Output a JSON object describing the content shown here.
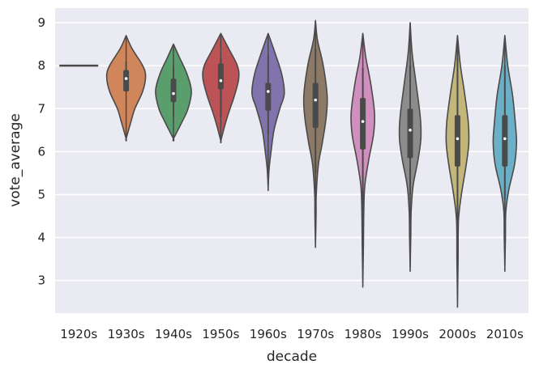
{
  "chart_data": {
    "type": "violin",
    "xlabel": "decade",
    "ylabel": "vote_average",
    "ylim": [
      2.24,
      9.34
    ],
    "yticks": [
      3,
      4,
      5,
      6,
      7,
      8,
      9
    ],
    "grid": "horizontal",
    "background": "#eaeaf2",
    "categories": [
      "1920s",
      "1930s",
      "1940s",
      "1950s",
      "1960s",
      "1970s",
      "1980s",
      "1990s",
      "2000s",
      "2010s"
    ],
    "violins": [
      {
        "category": "1920s",
        "color": "#4a4a4a",
        "single_value": 8.0
      },
      {
        "category": "1930s",
        "color": "#d0855a",
        "min": 6.3,
        "max": 8.7,
        "median": 7.7,
        "q1": 7.4,
        "q3": 7.9,
        "whisker_low": 7.4,
        "whisker_high": 8.1,
        "density": [
          [
            8.7,
            0
          ],
          [
            8.4,
            0.3
          ],
          [
            8.0,
            0.85
          ],
          [
            7.75,
            1.0
          ],
          [
            7.4,
            0.85
          ],
          [
            7.0,
            0.45
          ],
          [
            6.7,
            0.25
          ],
          [
            6.3,
            0
          ]
        ]
      },
      {
        "category": "1940s",
        "color": "#5a9e6d",
        "min": 6.3,
        "max": 8.5,
        "median": 7.35,
        "q1": 7.15,
        "q3": 7.7,
        "whisker_low": 6.8,
        "whisker_high": 8.0,
        "density": [
          [
            8.5,
            0
          ],
          [
            8.2,
            0.3
          ],
          [
            7.8,
            0.7
          ],
          [
            7.4,
            0.92
          ],
          [
            7.0,
            0.75
          ],
          [
            6.7,
            0.45
          ],
          [
            6.3,
            0
          ]
        ]
      },
      {
        "category": "1950s",
        "color": "#bc5457",
        "min": 6.25,
        "max": 8.75,
        "median": 7.65,
        "q1": 7.45,
        "q3": 8.05,
        "whisker_low": 6.8,
        "whisker_high": 8.2,
        "density": [
          [
            8.75,
            0
          ],
          [
            8.4,
            0.4
          ],
          [
            8.0,
            0.85
          ],
          [
            7.7,
            0.92
          ],
          [
            7.3,
            0.7
          ],
          [
            6.9,
            0.4
          ],
          [
            6.6,
            0.2
          ],
          [
            6.25,
            0
          ]
        ]
      },
      {
        "category": "1960s",
        "color": "#8174ad",
        "min": 5.15,
        "max": 8.75,
        "median": 7.4,
        "q1": 6.95,
        "q3": 7.6,
        "whisker_low": 6.4,
        "whisker_high": 8.25,
        "density": [
          [
            8.75,
            0
          ],
          [
            8.3,
            0.35
          ],
          [
            7.8,
            0.7
          ],
          [
            7.35,
            0.83
          ],
          [
            7.0,
            0.6
          ],
          [
            6.5,
            0.3
          ],
          [
            6.0,
            0.15
          ],
          [
            5.6,
            0.05
          ],
          [
            5.15,
            0
          ]
        ]
      },
      {
        "category": "1970s",
        "color": "#8d7a66",
        "min": 3.85,
        "max": 9.05,
        "median": 7.2,
        "q1": 6.55,
        "q3": 7.6,
        "whisker_low": 5.5,
        "whisker_high": 8.4,
        "density": [
          [
            9.05,
            0
          ],
          [
            8.6,
            0.1
          ],
          [
            8.0,
            0.4
          ],
          [
            7.3,
            0.6
          ],
          [
            6.8,
            0.55
          ],
          [
            6.2,
            0.35
          ],
          [
            5.7,
            0.15
          ],
          [
            5.0,
            0.04
          ],
          [
            4.5,
            0.03
          ],
          [
            3.85,
            0
          ]
        ]
      },
      {
        "category": "1980s",
        "color": "#d08fbe",
        "min": 2.95,
        "max": 8.75,
        "median": 6.7,
        "q1": 6.05,
        "q3": 7.25,
        "whisker_low": 4.55,
        "whisker_high": 7.95,
        "density": [
          [
            8.75,
            0
          ],
          [
            8.2,
            0.15
          ],
          [
            7.6,
            0.4
          ],
          [
            6.9,
            0.6
          ],
          [
            6.4,
            0.55
          ],
          [
            5.8,
            0.3
          ],
          [
            5.2,
            0.1
          ],
          [
            4.6,
            0.05
          ],
          [
            3.8,
            0.03
          ],
          [
            2.95,
            0
          ]
        ]
      },
      {
        "category": "1990s",
        "color": "#8c8c8c",
        "min": 3.3,
        "max": 9.0,
        "median": 6.5,
        "q1": 5.85,
        "q3": 7.0,
        "whisker_low": 5.0,
        "whisker_high": 8.0,
        "density": [
          [
            9.0,
            0
          ],
          [
            8.3,
            0.1
          ],
          [
            7.6,
            0.3
          ],
          [
            6.8,
            0.52
          ],
          [
            6.3,
            0.55
          ],
          [
            5.8,
            0.4
          ],
          [
            5.2,
            0.15
          ],
          [
            4.6,
            0.05
          ],
          [
            4.0,
            0.03
          ],
          [
            3.3,
            0
          ]
        ]
      },
      {
        "category": "2000s",
        "color": "#c3b67b",
        "min": 2.5,
        "max": 8.7,
        "median": 6.3,
        "q1": 5.65,
        "q3": 6.85,
        "whisker_low": 4.1,
        "whisker_high": 8.35,
        "density": [
          [
            8.7,
            0
          ],
          [
            8.0,
            0.15
          ],
          [
            7.4,
            0.35
          ],
          [
            6.7,
            0.55
          ],
          [
            6.2,
            0.58
          ],
          [
            5.7,
            0.45
          ],
          [
            5.0,
            0.2
          ],
          [
            4.4,
            0.05
          ],
          [
            3.5,
            0.03
          ],
          [
            2.5,
            0
          ]
        ]
      },
      {
        "category": "2010s",
        "color": "#6bb0c7",
        "min": 3.3,
        "max": 8.7,
        "median": 6.3,
        "q1": 5.65,
        "q3": 6.85,
        "whisker_low": 4.9,
        "whisker_high": 8.0,
        "density": [
          [
            8.7,
            0
          ],
          [
            8.0,
            0.15
          ],
          [
            7.3,
            0.4
          ],
          [
            6.6,
            0.55
          ],
          [
            6.2,
            0.6
          ],
          [
            5.7,
            0.5
          ],
          [
            5.1,
            0.2
          ],
          [
            4.6,
            0.05
          ],
          [
            4.0,
            0.03
          ],
          [
            3.3,
            0
          ]
        ]
      }
    ]
  }
}
